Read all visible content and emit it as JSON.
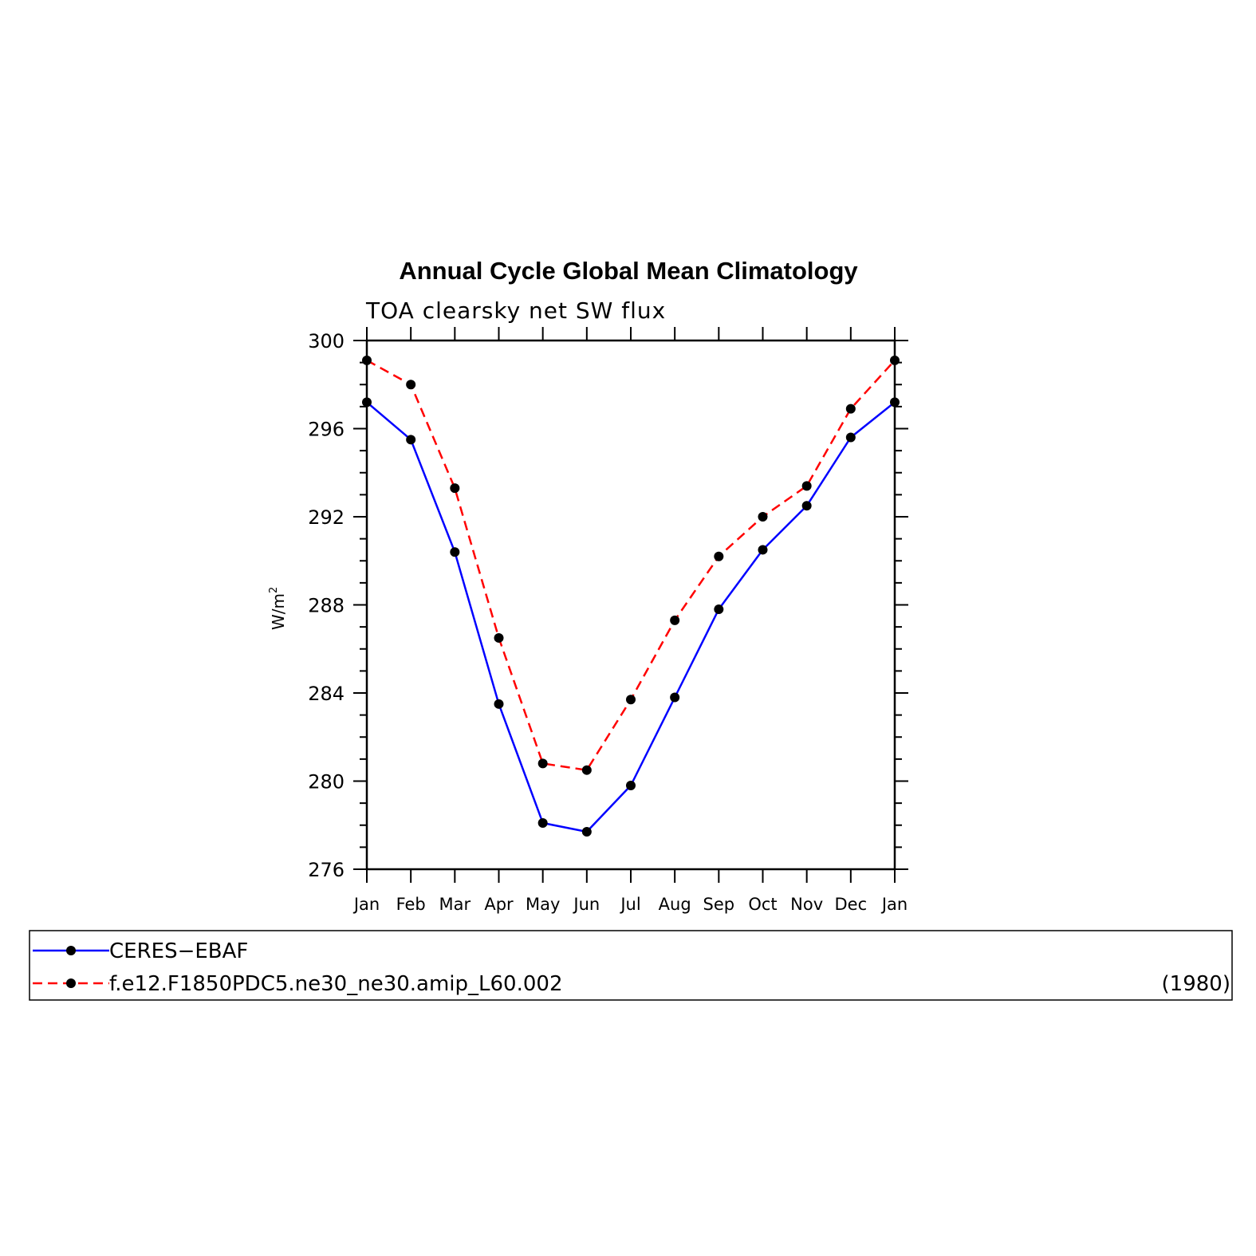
{
  "chart_data": {
    "type": "line",
    "title": "Annual Cycle Global Mean Climatology",
    "subtitle": "TOA clearsky net SW flux",
    "ylabel": "W/m",
    "ylabel_superscript": "2",
    "ylim": [
      276,
      300
    ],
    "yticks": [
      276,
      280,
      284,
      288,
      292,
      296,
      300
    ],
    "categories": [
      "Jan",
      "Feb",
      "Mar",
      "Apr",
      "May",
      "Jun",
      "Jul",
      "Aug",
      "Sep",
      "Oct",
      "Nov",
      "Dec",
      "Jan"
    ],
    "series": [
      {
        "name": "CERES−EBAF",
        "color": "#0000ff",
        "dash": "solid",
        "values": [
          297.2,
          295.5,
          290.4,
          283.5,
          278.1,
          277.7,
          279.8,
          283.8,
          287.8,
          290.5,
          292.5,
          295.6,
          297.2
        ]
      },
      {
        "name": "f.e12.F1850PDC5.ne30_ne30.amip_L60.002",
        "color": "#ff0000",
        "dash": "dashed",
        "values": [
          299.1,
          298.0,
          293.3,
          286.5,
          280.8,
          280.5,
          283.7,
          287.3,
          290.2,
          292.0,
          293.4,
          296.9,
          299.1
        ]
      }
    ],
    "legend": {
      "position": "bottom",
      "note": "(1980)"
    },
    "marker_color": "#000000"
  }
}
